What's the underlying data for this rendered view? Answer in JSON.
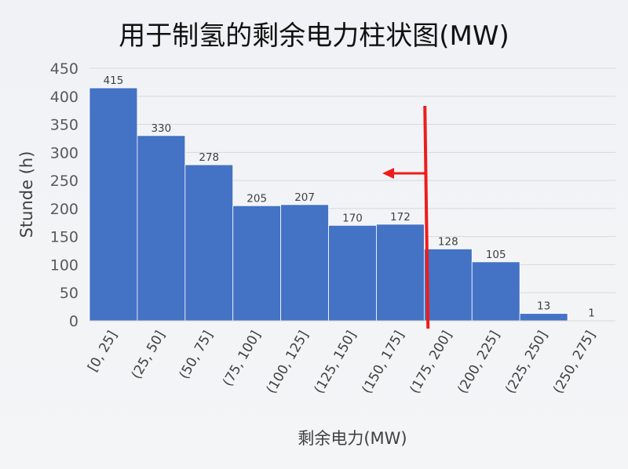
{
  "chart_data": {
    "type": "bar",
    "title": "用于制氢的剩余电力柱状图(MW)",
    "xlabel": "剩余电力(MW)",
    "ylabel": "Stunde (h)",
    "categories": [
      "[0, 25]",
      "(25, 50]",
      "(50, 75]",
      "(75, 100]",
      "(100, 125]",
      "(125, 150]",
      "(150, 175]",
      "(175, 200]",
      "(200, 225]",
      "(225, 250]",
      "(250, 275]"
    ],
    "values": [
      415,
      330,
      278,
      205,
      207,
      170,
      172,
      128,
      105,
      13,
      1
    ],
    "yticks": [
      0,
      50,
      100,
      150,
      200,
      250,
      300,
      350,
      400,
      450
    ],
    "ylim": [
      0,
      450
    ],
    "grid": true,
    "data_labels": true,
    "colors": {
      "bar": "#4472c4",
      "marker": "#ee1c1c",
      "grid": "#d9d9d9",
      "text": "#404040"
    },
    "annotation": {
      "type": "vertical-line-with-left-arrow",
      "x_value": 177,
      "color": "#ee1c1c"
    }
  }
}
